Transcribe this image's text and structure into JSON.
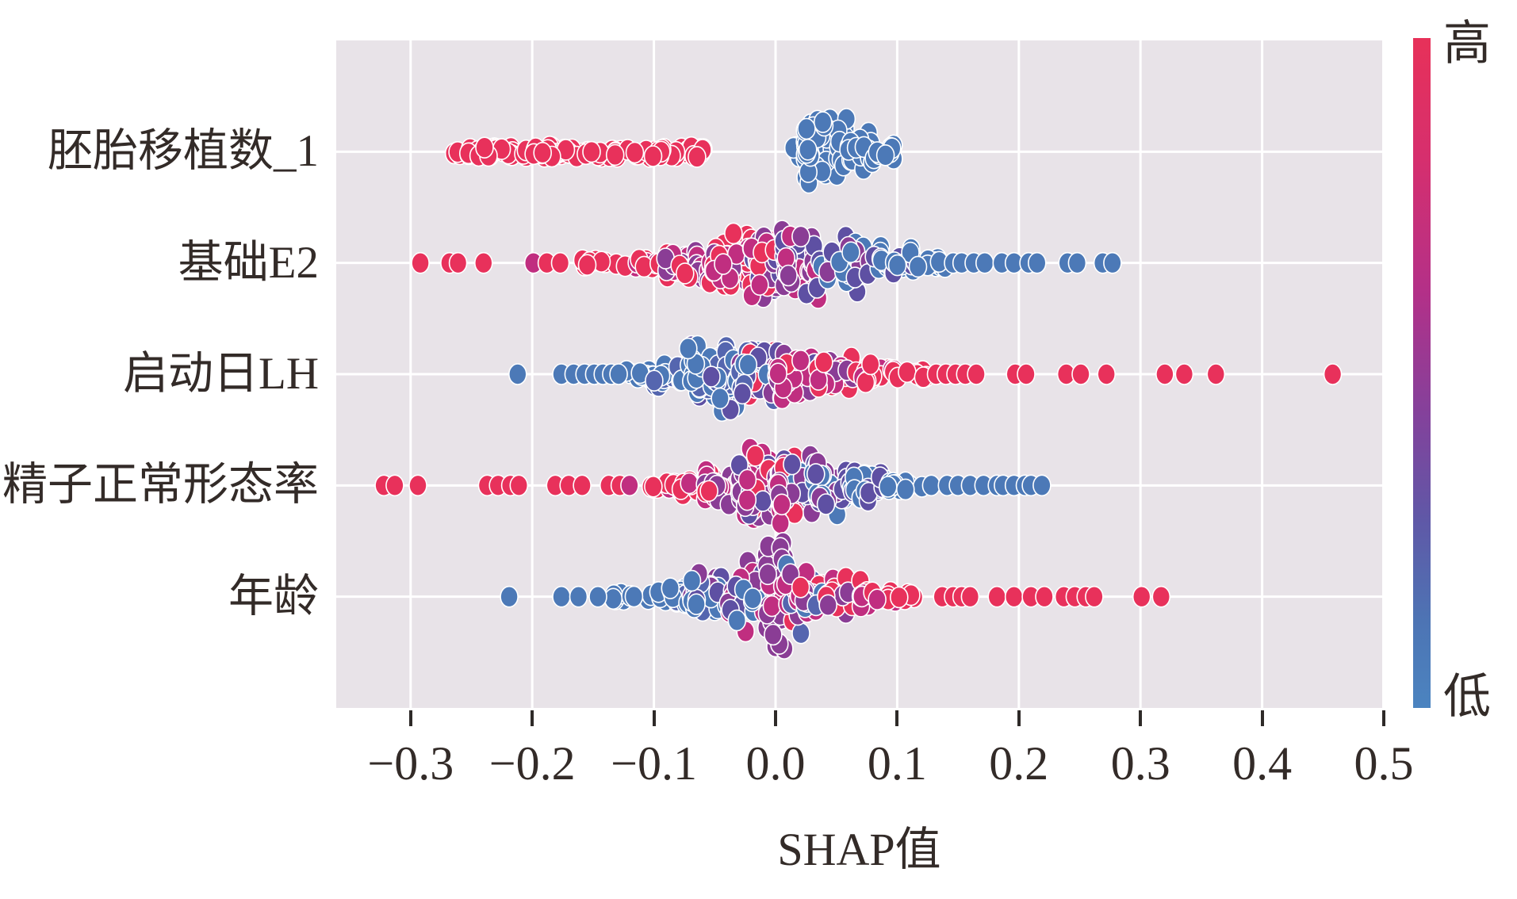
{
  "figure": {
    "kind": "SHAP summary beeswarm plot"
  },
  "colorbar": {
    "high_label": "高",
    "low_label": "低",
    "gradient": [
      "#e73159",
      "#d62f6e",
      "#b33088",
      "#84419b",
      "#5f58a7",
      "#4d74b4",
      "#4b84c0"
    ]
  },
  "palette": {
    "red": "#e8315b",
    "magenta": "#c02e80",
    "purple": "#8a3d95",
    "indigo": "#5e50a3",
    "slate": "#5566af",
    "blue": "#4c79b7"
  },
  "chart_data": {
    "type": "scatter",
    "subtype": "beeswarm",
    "title": "",
    "xlabel": "SHAP值",
    "x_ticks": [
      -0.3,
      -0.2,
      -0.1,
      0.0,
      0.1,
      0.2,
      0.3,
      0.4,
      0.5
    ],
    "x_range": [
      -0.361,
      0.5
    ],
    "grid": true,
    "legend_position": "right-colorbar",
    "color_encoding": {
      "high": "高",
      "low": "低"
    },
    "features": [
      {
        "label": "胚胎移植数_1",
        "points": [],
        "bands": [
          {
            "x": [
              -0.268,
              -0.216
            ],
            "n": 26,
            "s": 9,
            "c": [
              "red"
            ]
          },
          {
            "x": [
              -0.208,
              -0.058
            ],
            "n": 74,
            "s": 11,
            "c": [
              "red"
            ]
          },
          {
            "x": [
              0.012,
              0.024
            ],
            "n": 10,
            "s": 16,
            "c": [
              "blue"
            ]
          },
          {
            "x": [
              0.024,
              0.06
            ],
            "n": 78,
            "s": 56,
            "c": [
              "blue"
            ]
          },
          {
            "x": [
              0.06,
              0.08
            ],
            "n": 26,
            "s": 30,
            "c": [
              "blue"
            ]
          },
          {
            "x": [
              0.08,
              0.098
            ],
            "n": 10,
            "s": 12,
            "c": [
              "blue"
            ]
          }
        ]
      },
      {
        "label": "基础E2",
        "points": [
          {
            "x": -0.292,
            "c": "red"
          },
          {
            "x": -0.268,
            "c": "red"
          },
          {
            "x": -0.261,
            "c": "red"
          },
          {
            "x": -0.24,
            "c": "red"
          },
          {
            "x": -0.199,
            "c": "magenta"
          },
          {
            "x": -0.188,
            "c": "red"
          },
          {
            "x": -0.177,
            "c": "red"
          },
          {
            "x": 0.146,
            "c": "blue"
          },
          {
            "x": 0.153,
            "c": "blue"
          },
          {
            "x": 0.163,
            "c": "blue"
          },
          {
            "x": 0.172,
            "c": "blue"
          },
          {
            "x": 0.186,
            "c": "blue"
          },
          {
            "x": 0.196,
            "c": "blue"
          },
          {
            "x": 0.208,
            "c": "blue"
          },
          {
            "x": 0.215,
            "c": "blue"
          },
          {
            "x": 0.24,
            "c": "blue"
          },
          {
            "x": 0.248,
            "c": "blue"
          },
          {
            "x": 0.269,
            "c": "blue"
          },
          {
            "x": 0.277,
            "c": "blue"
          }
        ],
        "bands": [
          {
            "x": [
              -0.16,
              -0.124
            ],
            "n": 8,
            "s": 6,
            "c": [
              "red"
            ]
          },
          {
            "x": [
              -0.124,
              -0.092
            ],
            "n": 14,
            "s": 11,
            "c": [
              "red",
              "magenta"
            ]
          },
          {
            "x": [
              -0.092,
              -0.056
            ],
            "n": 30,
            "s": 26,
            "c": [
              "red",
              "magenta",
              "purple"
            ]
          },
          {
            "x": [
              -0.056,
              -0.02
            ],
            "n": 52,
            "s": 46,
            "c": [
              "red",
              "magenta",
              "purple"
            ]
          },
          {
            "x": [
              -0.02,
              0.006
            ],
            "n": 55,
            "s": 58,
            "c": [
              "purple",
              "magenta",
              "indigo",
              "red"
            ]
          },
          {
            "x": [
              0.006,
              0.042
            ],
            "n": 50,
            "s": 50,
            "c": [
              "indigo",
              "purple",
              "blue",
              "magenta"
            ]
          },
          {
            "x": [
              0.042,
              0.08
            ],
            "n": 42,
            "s": 40,
            "c": [
              "blue",
              "indigo",
              "purple"
            ]
          },
          {
            "x": [
              0.08,
              0.116
            ],
            "n": 26,
            "s": 26,
            "c": [
              "blue",
              "indigo"
            ]
          },
          {
            "x": [
              0.116,
              0.14
            ],
            "n": 10,
            "s": 11,
            "c": [
              "blue"
            ]
          }
        ]
      },
      {
        "label": "启动日LH",
        "points": [
          {
            "x": -0.212,
            "c": "blue"
          },
          {
            "x": -0.176,
            "c": "blue"
          },
          {
            "x": -0.166,
            "c": "blue"
          },
          {
            "x": -0.157,
            "c": "blue"
          },
          {
            "x": -0.149,
            "c": "blue"
          },
          {
            "x": -0.142,
            "c": "blue"
          },
          {
            "x": -0.135,
            "c": "blue"
          },
          {
            "x": -0.129,
            "c": "blue"
          },
          {
            "x": 0.132,
            "c": "red"
          },
          {
            "x": 0.14,
            "c": "red"
          },
          {
            "x": 0.148,
            "c": "red"
          },
          {
            "x": 0.156,
            "c": "red"
          },
          {
            "x": 0.165,
            "c": "red"
          },
          {
            "x": 0.197,
            "c": "red"
          },
          {
            "x": 0.206,
            "c": "red"
          },
          {
            "x": 0.239,
            "c": "red"
          },
          {
            "x": 0.251,
            "c": "red"
          },
          {
            "x": 0.272,
            "c": "red"
          },
          {
            "x": 0.32,
            "c": "red"
          },
          {
            "x": 0.336,
            "c": "red"
          },
          {
            "x": 0.362,
            "c": "red"
          },
          {
            "x": 0.458,
            "c": "red"
          }
        ],
        "bands": [
          {
            "x": [
              -0.125,
              -0.1
            ],
            "n": 10,
            "s": 8,
            "c": [
              "blue"
            ]
          },
          {
            "x": [
              -0.1,
              -0.072
            ],
            "n": 22,
            "s": 24,
            "c": [
              "blue",
              "slate"
            ]
          },
          {
            "x": [
              -0.072,
              -0.03
            ],
            "n": 62,
            "s": 58,
            "c": [
              "blue",
              "slate",
              "indigo"
            ]
          },
          {
            "x": [
              -0.03,
              0.0
            ],
            "n": 48,
            "s": 46,
            "c": [
              "slate",
              "indigo",
              "blue",
              "purple",
              "red"
            ]
          },
          {
            "x": [
              0.0,
              0.032
            ],
            "n": 42,
            "s": 40,
            "c": [
              "magenta",
              "purple",
              "red",
              "indigo"
            ]
          },
          {
            "x": [
              0.032,
              0.066
            ],
            "n": 32,
            "s": 30,
            "c": [
              "red",
              "magenta",
              "purple"
            ]
          },
          {
            "x": [
              0.066,
              0.1
            ],
            "n": 20,
            "s": 18,
            "c": [
              "red",
              "magenta"
            ]
          },
          {
            "x": [
              0.1,
              0.126
            ],
            "n": 8,
            "s": 8,
            "c": [
              "red"
            ]
          }
        ]
      },
      {
        "label": "精子正常形态率",
        "points": [
          {
            "x": -0.322,
            "c": "red"
          },
          {
            "x": -0.313,
            "c": "red"
          },
          {
            "x": -0.294,
            "c": "red"
          },
          {
            "x": -0.237,
            "c": "red"
          },
          {
            "x": -0.228,
            "c": "red"
          },
          {
            "x": -0.218,
            "c": "red"
          },
          {
            "x": -0.211,
            "c": "red"
          },
          {
            "x": -0.181,
            "c": "red"
          },
          {
            "x": -0.17,
            "c": "red"
          },
          {
            "x": -0.159,
            "c": "red"
          },
          {
            "x": -0.137,
            "c": "red"
          },
          {
            "x": -0.128,
            "c": "red"
          },
          {
            "x": -0.12,
            "c": "magenta"
          },
          {
            "x": 0.128,
            "c": "blue"
          },
          {
            "x": 0.141,
            "c": "blue"
          },
          {
            "x": 0.15,
            "c": "blue"
          },
          {
            "x": 0.16,
            "c": "blue"
          },
          {
            "x": 0.171,
            "c": "blue"
          },
          {
            "x": 0.182,
            "c": "blue"
          },
          {
            "x": 0.187,
            "c": "blue"
          },
          {
            "x": 0.196,
            "c": "blue"
          },
          {
            "x": 0.205,
            "c": "blue"
          },
          {
            "x": 0.21,
            "c": "blue"
          },
          {
            "x": 0.219,
            "c": "blue"
          }
        ],
        "bands": [
          {
            "x": [
              -0.108,
              -0.085
            ],
            "n": 6,
            "s": 7,
            "c": [
              "red",
              "magenta"
            ]
          },
          {
            "x": [
              -0.085,
              -0.058
            ],
            "n": 14,
            "s": 15,
            "c": [
              "red",
              "magenta"
            ]
          },
          {
            "x": [
              -0.058,
              -0.03
            ],
            "n": 34,
            "s": 36,
            "c": [
              "magenta",
              "red",
              "purple"
            ]
          },
          {
            "x": [
              -0.03,
              0.0
            ],
            "n": 58,
            "s": 60,
            "c": [
              "magenta",
              "purple",
              "red",
              "indigo"
            ]
          },
          {
            "x": [
              0.0,
              0.03
            ],
            "n": 58,
            "s": 58,
            "c": [
              "purple",
              "indigo",
              "magenta",
              "blue",
              "red"
            ]
          },
          {
            "x": [
              0.03,
              0.062
            ],
            "n": 42,
            "s": 44,
            "c": [
              "indigo",
              "blue",
              "purple"
            ]
          },
          {
            "x": [
              0.062,
              0.092
            ],
            "n": 26,
            "s": 26,
            "c": [
              "blue",
              "indigo"
            ]
          },
          {
            "x": [
              0.092,
              0.125
            ],
            "n": 12,
            "s": 11,
            "c": [
              "blue"
            ]
          }
        ]
      },
      {
        "label": "年龄",
        "points": [
          {
            "x": -0.219,
            "c": "blue"
          },
          {
            "x": -0.176,
            "c": "blue"
          },
          {
            "x": -0.162,
            "c": "blue"
          },
          {
            "x": -0.146,
            "c": "blue"
          },
          {
            "x": 0.137,
            "c": "red"
          },
          {
            "x": 0.146,
            "c": "red"
          },
          {
            "x": 0.153,
            "c": "red"
          },
          {
            "x": 0.16,
            "c": "red"
          },
          {
            "x": 0.182,
            "c": "red"
          },
          {
            "x": 0.196,
            "c": "red"
          },
          {
            "x": 0.21,
            "c": "red"
          },
          {
            "x": 0.221,
            "c": "red"
          },
          {
            "x": 0.237,
            "c": "red"
          },
          {
            "x": 0.246,
            "c": "red"
          },
          {
            "x": 0.255,
            "c": "red"
          },
          {
            "x": 0.262,
            "c": "red"
          },
          {
            "x": 0.301,
            "c": "red"
          },
          {
            "x": 0.317,
            "c": "red"
          }
        ],
        "bands": [
          {
            "x": [
              -0.136,
              -0.1
            ],
            "n": 9,
            "s": 7,
            "c": [
              "blue"
            ]
          },
          {
            "x": [
              -0.1,
              -0.07
            ],
            "n": 18,
            "s": 18,
            "c": [
              "blue",
              "slate"
            ]
          },
          {
            "x": [
              -0.07,
              -0.04
            ],
            "n": 34,
            "s": 36,
            "c": [
              "blue",
              "slate",
              "indigo",
              "purple"
            ]
          },
          {
            "x": [
              -0.04,
              -0.008
            ],
            "n": 52,
            "s": 54,
            "c": [
              "indigo",
              "purple",
              "blue",
              "magenta"
            ]
          },
          {
            "x": [
              -0.008,
              0.008
            ],
            "n": 30,
            "s": 74,
            "u": 1,
            "c": [
              "purple",
              "magenta"
            ]
          },
          {
            "x": [
              0.008,
              0.04
            ],
            "n": 48,
            "s": 50,
            "c": [
              "magenta",
              "purple",
              "red",
              "slate",
              "blue"
            ]
          },
          {
            "x": [
              0.04,
              0.07
            ],
            "n": 32,
            "s": 32,
            "c": [
              "red",
              "magenta",
              "purple"
            ]
          },
          {
            "x": [
              0.07,
              0.1
            ],
            "n": 16,
            "s": 16,
            "c": [
              "red",
              "magenta"
            ]
          },
          {
            "x": [
              0.1,
              0.12
            ],
            "n": 5,
            "s": 6,
            "c": [
              "red"
            ]
          }
        ]
      }
    ]
  }
}
